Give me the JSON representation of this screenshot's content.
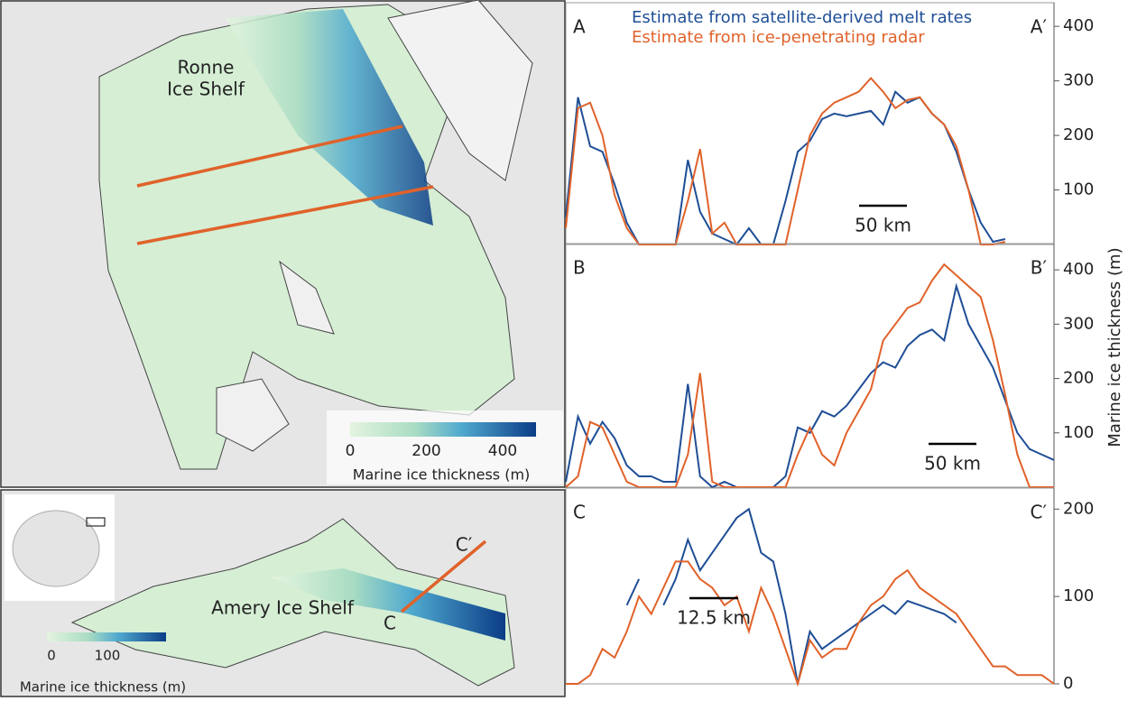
{
  "chart_data": [
    {
      "type": "line",
      "panel_left": "A",
      "panel_right": "A′",
      "scale_bar": "50 km",
      "ylim": [
        0,
        440
      ],
      "yticks": [
        100,
        200,
        300,
        400
      ],
      "series": [
        {
          "name": "Estimate from satellite-derived melt rates",
          "color": "#1f4e96",
          "values": [
            50,
            270,
            180,
            170,
            110,
            40,
            0,
            0,
            0,
            0,
            155,
            60,
            20,
            10,
            0,
            30,
            0,
            0,
            80,
            170,
            190,
            230,
            240,
            235,
            240,
            245,
            220,
            280,
            260,
            270,
            240,
            220,
            170,
            100,
            40,
            5,
            10,
            null,
            null,
            null,
            null
          ]
        },
        {
          "name": "Estimate from ice-penetrating radar",
          "color": "#e0622a",
          "values": [
            30,
            250,
            260,
            200,
            90,
            30,
            0,
            0,
            0,
            0,
            80,
            175,
            20,
            40,
            0,
            0,
            0,
            0,
            0,
            100,
            200,
            240,
            260,
            270,
            280,
            305,
            280,
            250,
            265,
            270,
            240,
            220,
            180,
            100,
            0,
            0,
            5,
            null,
            null,
            null,
            null
          ]
        }
      ]
    },
    {
      "type": "line",
      "panel_left": "B",
      "panel_right": "B′",
      "scale_bar": "50 km",
      "ylabel": "Marine ice thickness (m)",
      "ylim": [
        0,
        445
      ],
      "yticks": [
        100,
        200,
        300,
        400
      ],
      "series": [
        {
          "color": "#1f4e96",
          "values": [
            10,
            130,
            80,
            120,
            90,
            40,
            20,
            20,
            10,
            10,
            190,
            20,
            0,
            10,
            0,
            0,
            0,
            0,
            20,
            110,
            100,
            140,
            130,
            150,
            180,
            210,
            230,
            220,
            260,
            280,
            290,
            270,
            370,
            300,
            260,
            220,
            160,
            100,
            70,
            60,
            50
          ]
        },
        {
          "color": "#e0622a",
          "values": [
            0,
            20,
            120,
            110,
            60,
            10,
            0,
            0,
            0,
            0,
            60,
            210,
            10,
            0,
            0,
            0,
            0,
            0,
            0,
            60,
            110,
            60,
            40,
            100,
            140,
            180,
            270,
            300,
            330,
            340,
            380,
            410,
            390,
            370,
            350,
            270,
            170,
            60,
            0,
            0,
            0
          ]
        }
      ]
    },
    {
      "type": "line",
      "panel_left": "C",
      "panel_right": "C′",
      "scale_bar": "12.5 km",
      "ylim": [
        0,
        222
      ],
      "yticks": [
        0,
        100,
        200
      ],
      "series": [
        {
          "color": "#1f4e96",
          "values": [
            null,
            null,
            null,
            null,
            null,
            90,
            120,
            null,
            90,
            120,
            165,
            130,
            150,
            170,
            190,
            200,
            150,
            140,
            80,
            0,
            60,
            40,
            50,
            60,
            70,
            80,
            90,
            80,
            95,
            90,
            85,
            80,
            70,
            null,
            null,
            null,
            null,
            null,
            null,
            null,
            null
          ]
        },
        {
          "color": "#e0622a",
          "values": [
            0,
            0,
            10,
            40,
            30,
            60,
            100,
            80,
            110,
            140,
            140,
            120,
            110,
            90,
            100,
            60,
            110,
            80,
            40,
            0,
            50,
            30,
            40,
            40,
            70,
            90,
            100,
            120,
            130,
            110,
            100,
            90,
            80,
            60,
            40,
            20,
            20,
            10,
            10,
            10,
            0
          ]
        }
      ]
    }
  ],
  "maps": {
    "ronne": {
      "label_line1": "Ronne",
      "label_line2": "Ice Shelf",
      "colorbar_ticks": [
        0,
        200,
        400
      ],
      "colorbar_title": "Marine ice thickness (m)"
    },
    "amery": {
      "label": "Amery Ice Shelf",
      "section_start": "C",
      "section_end": "C′",
      "colorbar_ticks": [
        0,
        100
      ],
      "colorbar_title": "Marine ice thickness (m)"
    }
  }
}
